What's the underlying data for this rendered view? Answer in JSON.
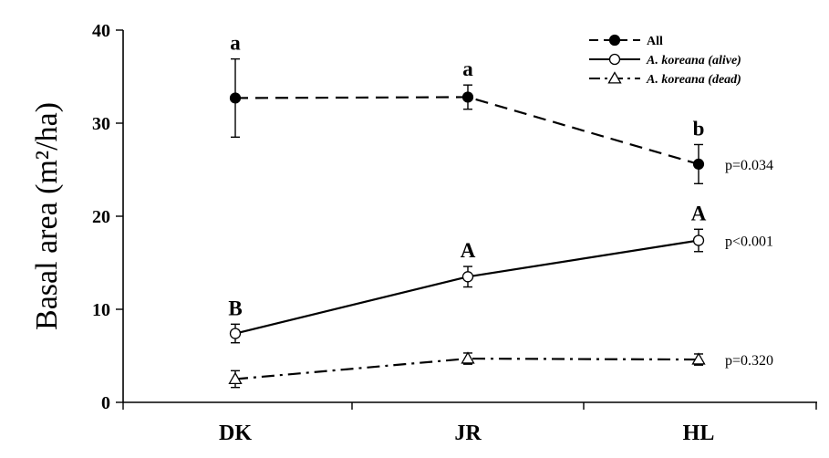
{
  "chart_data": {
    "type": "line",
    "categories": [
      "DK",
      "JR",
      "HL"
    ],
    "ylabel": "Basal area (m²/ha)",
    "ylim": [
      0,
      40
    ],
    "yticks": [
      0,
      10,
      20,
      30,
      40
    ],
    "grid": false,
    "legend_position": "top-right",
    "series": [
      {
        "name": "All",
        "values": [
          32.7,
          32.8,
          25.6
        ],
        "errors": [
          4.2,
          1.3,
          2.1
        ],
        "letters": [
          "a",
          "a",
          "b"
        ],
        "p_value": "p=0.034",
        "line_style": "dashed",
        "marker": "filled-circle",
        "italic": false
      },
      {
        "name": "A. koreana (alive)",
        "values": [
          7.4,
          13.5,
          17.4
        ],
        "errors": [
          1.0,
          1.1,
          1.2
        ],
        "letters": [
          "B",
          "A",
          "A"
        ],
        "p_value": "p<0.001",
        "line_style": "solid",
        "marker": "open-circle",
        "italic": true
      },
      {
        "name": "A. koreana (dead)",
        "values": [
          2.5,
          4.7,
          4.6
        ],
        "errors": [
          0.9,
          0.6,
          0.6
        ],
        "letters": [
          "",
          "",
          ""
        ],
        "p_value": "p=0.320",
        "line_style": "dash-dot",
        "marker": "open-triangle",
        "italic": true
      }
    ]
  }
}
